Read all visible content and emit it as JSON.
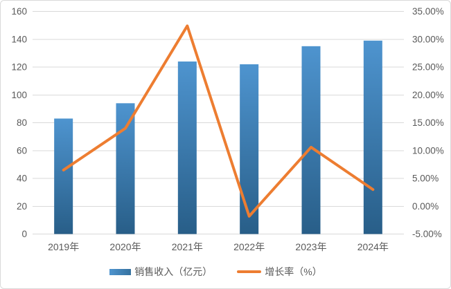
{
  "chart_data": {
    "type": "combo",
    "title": "",
    "categories": [
      "2019年",
      "2020年",
      "2021年",
      "2022年",
      "2023年",
      "2024年"
    ],
    "series": [
      {
        "name": "销售收入（亿元）",
        "type": "bar",
        "axis": "left",
        "values": [
          83,
          94,
          124,
          122,
          135,
          139
        ]
      },
      {
        "name": "增长率（%）",
        "type": "line",
        "axis": "right",
        "values": [
          6.5,
          14.0,
          32.4,
          -1.8,
          10.6,
          3.0
        ]
      }
    ],
    "left_axis": {
      "min": 0,
      "max": 160,
      "step": 20,
      "tick_labels": [
        "0",
        "20",
        "40",
        "60",
        "80",
        "100",
        "120",
        "140",
        "160"
      ]
    },
    "right_axis": {
      "min": -5,
      "max": 35,
      "step": 5,
      "tick_labels": [
        "-5.00%",
        "0.00%",
        "5.00%",
        "10.00%",
        "15.00%",
        "20.00%",
        "25.00%",
        "30.00%",
        "35.00%"
      ]
    },
    "grid": true,
    "legend_position": "bottom",
    "colors": {
      "bar_top": "#4e94cf",
      "bar_bottom": "#285e88",
      "line": "#ed7d31",
      "grid": "#d9d9d9",
      "text": "#595959",
      "border": "#d9d9d9",
      "background": "#ffffff"
    }
  }
}
